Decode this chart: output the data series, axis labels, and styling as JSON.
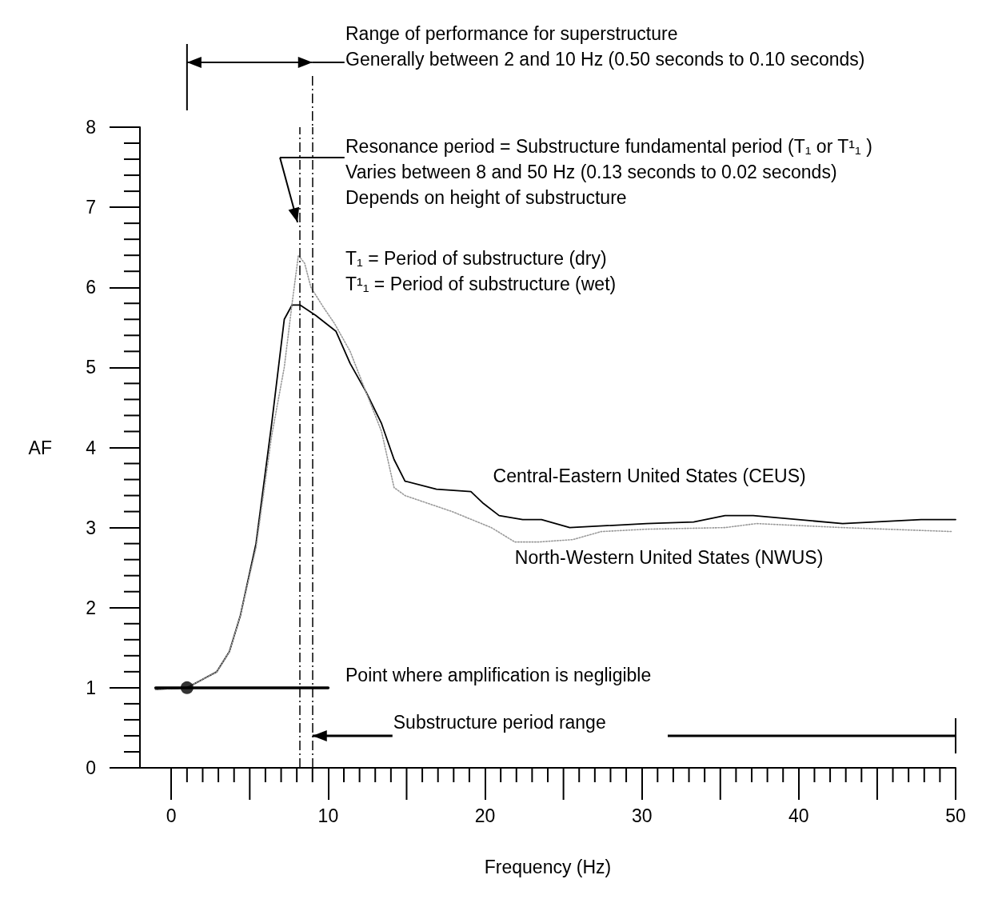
{
  "chart_data": {
    "type": "line",
    "xlabel": "Frequency (Hz)",
    "ylabel": "AF",
    "xlim": [
      -2,
      50
    ],
    "ylim": [
      0,
      8
    ],
    "xticks": [
      0,
      10,
      20,
      30,
      40,
      50
    ],
    "yticks": [
      0,
      1,
      2,
      3,
      4,
      5,
      6,
      7,
      8
    ],
    "grid": false,
    "legend": false,
    "marker": "none",
    "series": [
      {
        "name": "Central-Eastern United States (CEUS)",
        "color": "#000000",
        "line_style": "solid",
        "x": [
          -1,
          1,
          2.9,
          3.7,
          4.4,
          5.4,
          6.4,
          7.2,
          7.7,
          8.2,
          9.2,
          10.5,
          11.4,
          12.4,
          13.4,
          14.2,
          14.9,
          16.9,
          19.1,
          19.9,
          20.9,
          22.4,
          23.6,
          25.4,
          30.3,
          33.3,
          35.3,
          37.1,
          42.8,
          47.8,
          50
        ],
        "values": [
          0.98,
          1.0,
          1.2,
          1.45,
          1.9,
          2.8,
          4.3,
          5.6,
          5.78,
          5.78,
          5.65,
          5.45,
          5.05,
          4.7,
          4.3,
          3.85,
          3.58,
          3.48,
          3.45,
          3.3,
          3.15,
          3.1,
          3.1,
          3.0,
          3.05,
          3.07,
          3.15,
          3.15,
          3.05,
          3.1,
          3.1
        ]
      },
      {
        "name": "North-Western United States (NWUS)",
        "color": "#999999",
        "line_style": "dotted",
        "x": [
          -1,
          1,
          2.9,
          3.7,
          4.4,
          5.4,
          6.4,
          7.2,
          7.7,
          8.1,
          8.5,
          8.9,
          9.7,
          10.4,
          11.4,
          12.4,
          13.4,
          14.2,
          14.9,
          17.9,
          20.4,
          21.9,
          23.4,
          25.6,
          27.4,
          30.3,
          35.3,
          37.3,
          42.8,
          49.8
        ],
        "values": [
          0.98,
          1.0,
          1.2,
          1.45,
          1.9,
          2.75,
          4.15,
          5.0,
          5.8,
          6.4,
          6.3,
          6.0,
          5.75,
          5.55,
          5.2,
          4.7,
          4.2,
          3.5,
          3.4,
          3.2,
          3.0,
          2.82,
          2.82,
          2.85,
          2.95,
          2.98,
          3.0,
          3.05,
          3.0,
          2.95
        ]
      },
      {
        "type": "line",
        "color": "#000000",
        "line_style": "solid",
        "x": [
          -1,
          10
        ],
        "values": [
          1,
          1
        ]
      },
      {
        "type": "scatter",
        "color": "#000000",
        "marker": "circle",
        "x": [
          1
        ],
        "values": [
          1
        ]
      }
    ],
    "ref_lines": [
      {
        "axis": "x",
        "value": 8.2,
        "color": "#000000",
        "line_style": "dashed"
      },
      {
        "axis": "x",
        "value": 9,
        "color": "#000000",
        "line_style": "dashed"
      }
    ],
    "annotations": [
      "Range of performance for superstructure",
      "Generally between 2 and 10 Hz (0.50 seconds to 0.10 seconds)",
      "Resonance period = Substructure fundamental period (T₁ or T¹₁ )",
      "Varies between 8 and 50 Hz (0.13 seconds to 0.02 seconds)",
      "Depends on height of substructure",
      "T₁ = Period of substructure (dry)",
      "T¹₁ = Period of substructure (wet)",
      "Point where amplification is negligible",
      {
        "text": "Substructure period range",
        "x": 9,
        "y": 0.4
      }
    ]
  }
}
